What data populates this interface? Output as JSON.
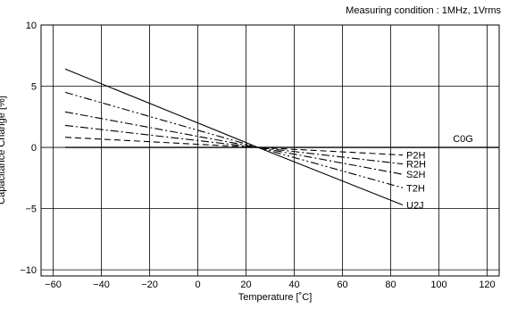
{
  "chart_data": {
    "type": "line",
    "subtitle": "Measuring condition : 1MHz, 1Vrms",
    "xlabel": "Temperature [˚C]",
    "ylabel": "Capacitance Change [%]",
    "xlim": [
      -65,
      125
    ],
    "ylim": [
      -10.5,
      10
    ],
    "xticks": [
      -60,
      -40,
      -20,
      0,
      20,
      40,
      60,
      80,
      100,
      120
    ],
    "xtick_labels": [
      "−60",
      "−40",
      "−20",
      "0",
      "20",
      "40",
      "60",
      "80",
      "100",
      "120"
    ],
    "yticks": [
      10,
      5,
      0,
      -5,
      -10
    ],
    "ytick_labels": [
      "10",
      "5",
      "0",
      "−5",
      "−10"
    ],
    "grid": true,
    "series": [
      {
        "name": "C0G",
        "style": "solid",
        "x": [
          -55,
          125
        ],
        "y": [
          0,
          0
        ]
      },
      {
        "name": "P2H",
        "style": "dashed",
        "x": [
          -55,
          25,
          85
        ],
        "y": [
          0.83,
          0,
          -0.62
        ]
      },
      {
        "name": "R2H",
        "style": "dash-dot",
        "x": [
          -55,
          25,
          85
        ],
        "y": [
          1.8,
          0,
          -1.35
        ]
      },
      {
        "name": "S2H",
        "style": "dash-dot",
        "x": [
          -55,
          25,
          85
        ],
        "y": [
          2.9,
          0,
          -2.2
        ]
      },
      {
        "name": "T2H",
        "style": "dash-dot-dot",
        "x": [
          -55,
          25,
          85
        ],
        "y": [
          4.5,
          0,
          -3.3
        ]
      },
      {
        "name": "U2J",
        "style": "solid",
        "x": [
          -55,
          25,
          85
        ],
        "y": [
          6.4,
          0,
          -4.7
        ]
      }
    ]
  }
}
